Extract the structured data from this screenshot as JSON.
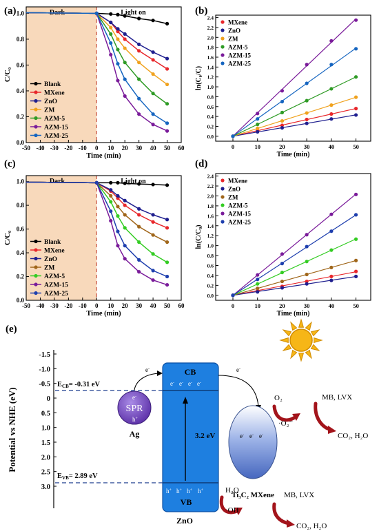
{
  "chart_data": [
    {
      "panel": "(a)",
      "type": "line",
      "region_labels": [
        "Dark",
        "Light on"
      ],
      "xlabel": "Time (min)",
      "ylabel": "C/C₀",
      "xlim": [
        -50,
        60
      ],
      "ylim": [
        0.0,
        1.05
      ],
      "x_ticks": [
        "-50",
        "-40",
        "-30",
        "-20",
        "-10",
        "0",
        "10",
        "20",
        "30",
        "40",
        "50",
        "60"
      ],
      "y_ticks": [
        "0.0",
        "0.2",
        "0.4",
        "0.6",
        "0.8",
        "1.0"
      ],
      "light_x": [
        0,
        10,
        15,
        20,
        30,
        40,
        50
      ],
      "series": [
        {
          "name": "Blank",
          "color": "#000000",
          "y": [
            1.0,
            0.995,
            0.99,
            0.98,
            0.96,
            0.945,
            0.92
          ]
        },
        {
          "name": "MXene",
          "color": "#e8272b",
          "y": [
            1.0,
            0.93,
            0.86,
            0.8,
            0.71,
            0.64,
            0.57
          ]
        },
        {
          "name": "ZnO",
          "color": "#1f1f8f",
          "y": [
            1.0,
            0.93,
            0.88,
            0.84,
            0.76,
            0.7,
            0.65
          ]
        },
        {
          "name": "ZM",
          "color": "#f0a21e",
          "y": [
            1.0,
            0.89,
            0.8,
            0.73,
            0.62,
            0.53,
            0.45
          ]
        },
        {
          "name": "AZM-5",
          "color": "#2e9b25",
          "y": [
            1.0,
            0.84,
            0.72,
            0.62,
            0.49,
            0.38,
            0.3
          ]
        },
        {
          "name": "AZM-15",
          "color": "#7a1b9a",
          "y": [
            1.0,
            0.68,
            0.48,
            0.36,
            0.22,
            0.14,
            0.09
          ]
        },
        {
          "name": "AZM-25",
          "color": "#1565c0",
          "y": [
            1.0,
            0.77,
            0.61,
            0.49,
            0.34,
            0.22,
            0.15
          ]
        }
      ]
    },
    {
      "panel": "(b)",
      "type": "scatter",
      "xlabel": "Time (min)",
      "ylabel": "ln(C₀/C)",
      "xlim": [
        -7,
        56
      ],
      "ylim": [
        -0.1,
        2.45
      ],
      "x_ticks": [
        "0",
        "10",
        "20",
        "30",
        "40",
        "50"
      ],
      "y_ticks": [
        "0.0",
        "0.2",
        "0.4",
        "0.6",
        "0.8",
        "1.0",
        "1.2",
        "1.4",
        "1.6",
        "1.8",
        "2.0",
        "2.2",
        "2.4"
      ],
      "x": [
        0,
        10,
        20,
        30,
        40,
        50
      ],
      "series": [
        {
          "name": "MXene",
          "color": "#e8272b",
          "y": [
            0,
            0.11,
            0.22,
            0.34,
            0.45,
            0.56
          ]
        },
        {
          "name": "ZnO",
          "color": "#1f1f8f",
          "y": [
            0,
            0.09,
            0.17,
            0.26,
            0.35,
            0.43
          ]
        },
        {
          "name": "ZM",
          "color": "#f0a21e",
          "y": [
            0,
            0.16,
            0.31,
            0.47,
            0.63,
            0.79
          ]
        },
        {
          "name": "AZM-5",
          "color": "#2e9b25",
          "y": [
            0,
            0.24,
            0.48,
            0.72,
            0.96,
            1.2
          ]
        },
        {
          "name": "AZM-15",
          "color": "#7a1b9a",
          "y": [
            0,
            0.46,
            0.92,
            1.45,
            1.93,
            2.35
          ]
        },
        {
          "name": "AZM-25",
          "color": "#1565c0",
          "y": [
            0,
            0.35,
            0.7,
            1.07,
            1.45,
            1.77
          ]
        }
      ]
    },
    {
      "panel": "(c)",
      "type": "line",
      "region_labels": [
        "Dark",
        "Light on"
      ],
      "xlabel": "Time (min)",
      "ylabel": "C/C₀",
      "xlim": [
        -50,
        60
      ],
      "ylim": [
        0.0,
        1.05
      ],
      "x_ticks": [
        "-50",
        "-40",
        "-30",
        "-20",
        "-10",
        "0",
        "10",
        "20",
        "30",
        "40",
        "50",
        "60"
      ],
      "y_ticks": [
        "0.0",
        "0.2",
        "0.4",
        "0.6",
        "0.8",
        "1.0"
      ],
      "light_x": [
        0,
        10,
        15,
        20,
        30,
        40,
        50
      ],
      "series": [
        {
          "name": "Blank",
          "color": "#000000",
          "y": [
            0.99,
            0.99,
            0.99,
            0.985,
            0.98,
            0.975,
            0.97
          ]
        },
        {
          "name": "MXene",
          "color": "#e8272b",
          "y": [
            0.99,
            0.92,
            0.86,
            0.8,
            0.72,
            0.66,
            0.61
          ]
        },
        {
          "name": "ZnO",
          "color": "#1f1f8f",
          "y": [
            0.99,
            0.93,
            0.88,
            0.84,
            0.77,
            0.72,
            0.68
          ]
        },
        {
          "name": "ZM",
          "color": "#a0661a",
          "y": [
            0.99,
            0.88,
            0.79,
            0.72,
            0.62,
            0.55,
            0.49
          ]
        },
        {
          "name": "AZM-5",
          "color": "#33cc22",
          "y": [
            0.99,
            0.83,
            0.71,
            0.61,
            0.49,
            0.39,
            0.32
          ]
        },
        {
          "name": "AZM-15",
          "color": "#7a1b9a",
          "y": [
            0.99,
            0.67,
            0.46,
            0.35,
            0.24,
            0.17,
            0.13
          ]
        },
        {
          "name": "AZM-25",
          "color": "#1e3fae",
          "y": [
            0.99,
            0.75,
            0.58,
            0.46,
            0.34,
            0.25,
            0.2
          ]
        }
      ]
    },
    {
      "panel": "(d)",
      "type": "scatter",
      "xlabel": "Time (min)",
      "ylabel": "ln(C/C₀)",
      "xlim": [
        -7,
        56
      ],
      "ylim": [
        -0.1,
        2.45
      ],
      "x_ticks": [
        "0",
        "10",
        "20",
        "30",
        "40",
        "50"
      ],
      "y_ticks": [
        "0.0",
        "0.2",
        "0.4",
        "0.6",
        "0.8",
        "1.0",
        "1.2",
        "1.4",
        "1.6",
        "1.8",
        "2.0",
        "2.2",
        "2.4"
      ],
      "x": [
        0,
        10,
        20,
        30,
        40,
        50
      ],
      "series": [
        {
          "name": "MXene",
          "color": "#e8272b",
          "y": [
            0,
            0.09,
            0.18,
            0.28,
            0.38,
            0.48
          ]
        },
        {
          "name": "ZnO",
          "color": "#1f1f8f",
          "y": [
            0,
            0.07,
            0.15,
            0.23,
            0.3,
            0.38
          ]
        },
        {
          "name": "ZM",
          "color": "#a0661a",
          "y": [
            0,
            0.14,
            0.28,
            0.42,
            0.56,
            0.7
          ]
        },
        {
          "name": "AZM-5",
          "color": "#33cc22",
          "y": [
            0,
            0.23,
            0.46,
            0.68,
            0.91,
            1.13
          ]
        },
        {
          "name": "AZM-15",
          "color": "#7a1b9a",
          "y": [
            0,
            0.41,
            0.83,
            1.22,
            1.63,
            2.03
          ]
        },
        {
          "name": "AZM-25",
          "color": "#1e3fae",
          "y": [
            0,
            0.32,
            0.64,
            0.98,
            1.29,
            1.62
          ]
        }
      ]
    }
  ],
  "diagram": {
    "panel": "(e)",
    "ylabel": "Potential vs NHE (eV)",
    "y_ticks": [
      "-1.5",
      "-1.0",
      "-0.5",
      "0",
      "0.5",
      "1.0",
      "1.5",
      "2.0",
      "2.5",
      "3.0"
    ],
    "ecb_label": "E",
    "ecb_sub": "CB",
    "ecb_value": "= -0.31 eV",
    "evb_label": "E",
    "evb_sub": "VB",
    "evb_value": "= 2.89 eV",
    "cb": "CB",
    "vb": "VB",
    "bandgap": "3.2 eV",
    "zno": "ZnO",
    "spr": "SPR",
    "ag": "Ag",
    "electron": "e",
    "hole": "h",
    "mxene": "Ti₃C₂ MXene",
    "o2": "O₂",
    "o2_radical": "·O₂⁻",
    "h2o": "H₂O",
    "oh_radical": "·OH",
    "pollutant_1": "MB,  LVX",
    "pollutant_2": "MB,  LVX",
    "products_1": "CO₂,  H₂O",
    "products_2": "CO₂,  H₂O",
    "colors": {
      "zno_band": "#1e7fe0",
      "spr_sphere": "#7b52c8",
      "mxene": "#6a8fd6",
      "arrow_red": "#a3141b",
      "sun": "#f6b617",
      "dash_blue": "#1d3f8f",
      "dark_region": "#f8d9bb"
    }
  }
}
